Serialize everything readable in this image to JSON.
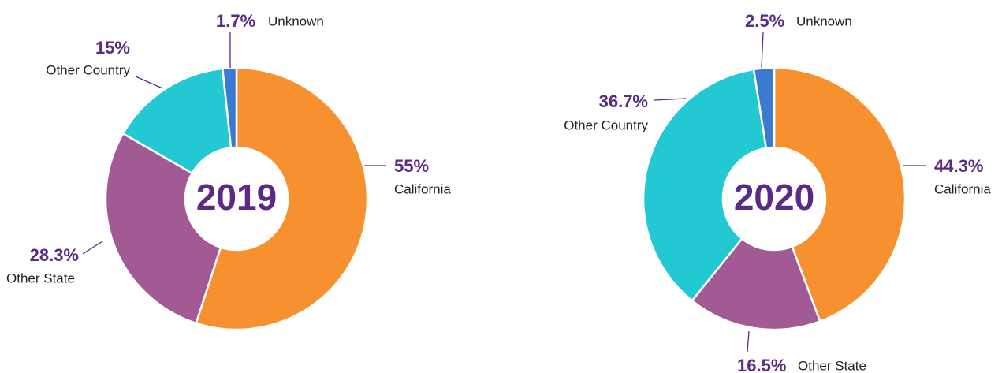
{
  "chart_data": [
    {
      "type": "donut",
      "title": "2019",
      "categories": [
        "California",
        "Other State",
        "Other Country",
        "Unknown"
      ],
      "values": [
        55,
        28.3,
        15,
        1.7
      ],
      "value_labels": [
        "55%",
        "28.3%",
        "15%",
        "1.7%"
      ],
      "colors": [
        "#f7902f",
        "#a25a95",
        "#22c9d3",
        "#3a7bd0"
      ]
    },
    {
      "type": "donut",
      "title": "2020",
      "categories": [
        "California",
        "Other State",
        "Other Country",
        "Unknown"
      ],
      "values": [
        44.3,
        16.5,
        36.7,
        2.5
      ],
      "value_labels": [
        "44.3%",
        "16.5%",
        "36.7%",
        "2.5%"
      ],
      "colors": [
        "#f7902f",
        "#a25a95",
        "#22c9d3",
        "#3a7bd0"
      ]
    }
  ]
}
